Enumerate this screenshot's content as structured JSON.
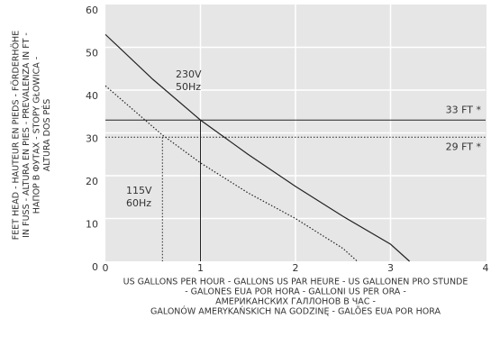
{
  "chart_data": {
    "type": "line",
    "y_label_lines": [
      "FEET HEAD - HAUTEUR EN PIEDS - FÖRDERHÖHE",
      "IN FUSS - ALTURA EN PIES - PREVALENZA IN FT -",
      "НАПОР В ФУТАХ - STOPY GŁOWICA -",
      "ALTURA DOS PÉS"
    ],
    "x_label_lines": [
      "US GALLONS PER HOUR - GALLONS US PAR HEURE - US GALLONEN PRO STUNDE",
      "- GALONES EUA POR HORA - GALLONI US PER ORA -",
      "АМЕРИКАНСКИХ ГАЛЛОНОВ В ЧАС -",
      "GALONÓW AMERYKAŃSKICH NA GODZINĘ - GALÕES EUA POR HORA"
    ],
    "xlim": [
      0,
      4
    ],
    "xticks": [
      0,
      1,
      2,
      3,
      4
    ],
    "ylim": [
      0,
      60
    ],
    "yticks": [
      0,
      10,
      20,
      30,
      40,
      50,
      60
    ],
    "grid": true,
    "series": [
      {
        "label_lines": [
          "230V",
          "50Hz"
        ],
        "color": "#222222",
        "style": "solid",
        "x": [
          0,
          0.5,
          1,
          1.5,
          2,
          2.5,
          3,
          3.2
        ],
        "values": [
          53,
          42.5,
          33,
          25,
          17.5,
          10.5,
          4,
          0
        ]
      },
      {
        "label_lines": [
          "115V",
          "60Hz"
        ],
        "color": "#222222",
        "style": "dotted",
        "x": [
          0,
          0.6,
          1,
          1.5,
          2,
          2.5,
          2.65
        ],
        "values": [
          41,
          29.5,
          23,
          16,
          10,
          3,
          0
        ]
      }
    ],
    "reference_lines": [
      {
        "y": 33,
        "x": 1,
        "label": "33 FT *",
        "style": "solid"
      },
      {
        "y": 29,
        "x": 0.6,
        "label": "29 FT *",
        "style": "dotted"
      }
    ]
  }
}
